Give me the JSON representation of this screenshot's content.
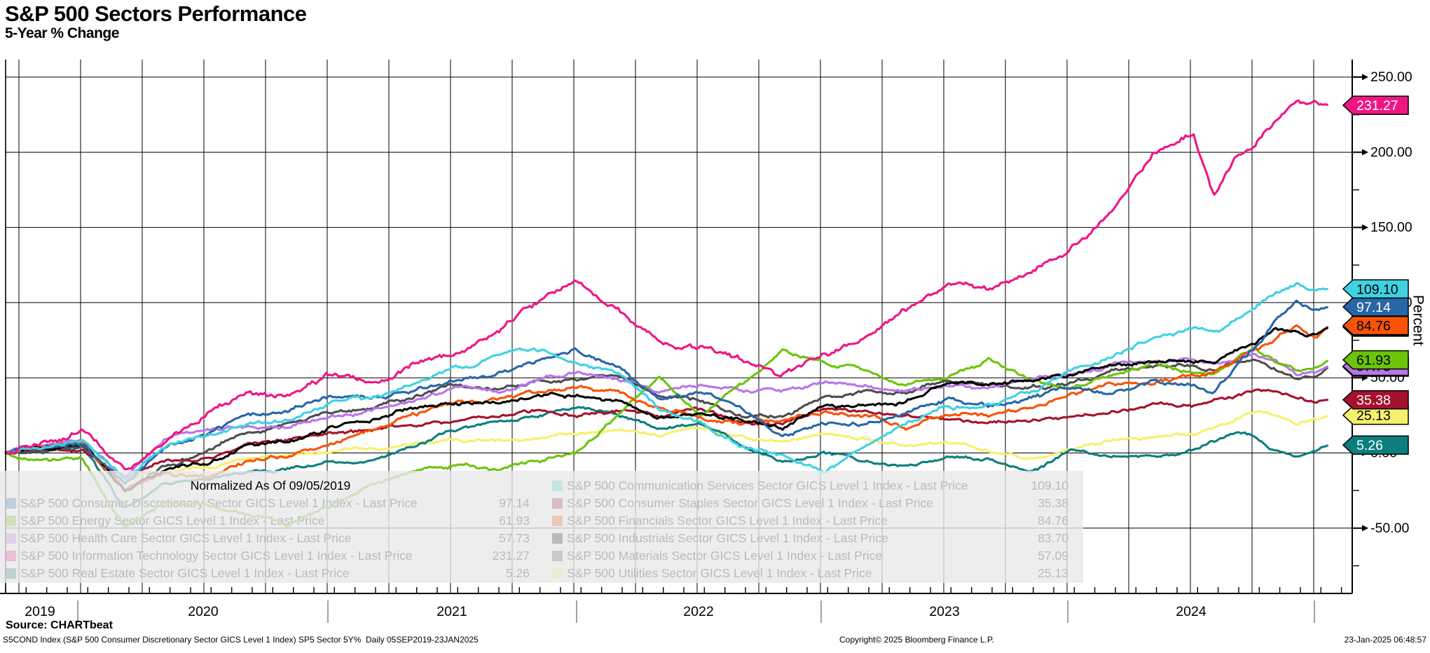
{
  "header": {
    "title": "S&P 500 Sectors Performance",
    "subtitle": "5-Year % Change"
  },
  "chart_data": {
    "type": "line",
    "title": "S&P 500 Sectors Performance",
    "subtitle": "5-Year % Change",
    "ylabel": "Percent",
    "legend_note": "Normalized As Of 09/05/2019",
    "ylim": [
      -92,
      262
    ],
    "yticks": [
      250,
      200,
      150,
      100,
      50,
      0,
      -50
    ],
    "y_minor_ticks": [
      225,
      175,
      125,
      75,
      25,
      -25,
      -75
    ],
    "grid": true,
    "legend_position": "bottom-left-panel",
    "x_tick_years": [
      "2019",
      "2020",
      "2021",
      "2022",
      "2023",
      "2024"
    ],
    "x_range_label": "05SEP2019-23JAN2025",
    "x_months_since_2019_09_05": [
      0,
      2,
      4,
      6,
      8,
      10,
      12,
      14,
      16,
      18,
      20,
      22,
      24,
      26,
      28,
      30,
      32,
      34,
      36,
      38,
      40,
      42,
      44,
      46,
      48,
      50,
      52,
      54,
      56,
      58,
      59,
      60,
      61,
      62,
      63,
      64,
      64.6
    ],
    "series": [
      {
        "id": "cons_disc",
        "legend_label": "S&P 500 Consumer Discretionary Sector GICS Level 1 Index - Last Price",
        "last_price": 97.14,
        "last_price_text": "97.14",
        "color": "#2766a8",
        "tag_text_color": "#ffffff",
        "legend_column": "left",
        "legend_row": 1,
        "values": [
          0,
          2,
          6,
          -20,
          2,
          12,
          25,
          28,
          37,
          38,
          40,
          48,
          52,
          60,
          70,
          55,
          35,
          40,
          30,
          11,
          20,
          18,
          25,
          35,
          30,
          35,
          43,
          40,
          48,
          45,
          41,
          55,
          70,
          88,
          100,
          94,
          97.14
        ]
      },
      {
        "id": "energy",
        "legend_label": "S&P 500 Energy Sector GICS Level 1 Index - Last Price",
        "last_price": 61.93,
        "last_price_text": "61.93",
        "color": "#6cc40a",
        "tag_text_color": "#000000",
        "legend_column": "left",
        "legend_row": 2,
        "values": [
          0,
          -3,
          -4,
          -50,
          -33,
          -35,
          -40,
          -48,
          -35,
          -20,
          -10,
          -8,
          -12,
          -5,
          0,
          25,
          50,
          25,
          45,
          67,
          60,
          55,
          48,
          50,
          63,
          48,
          43,
          52,
          60,
          55,
          52,
          60,
          68,
          60,
          55,
          57,
          61.93
        ]
      },
      {
        "id": "health_care",
        "legend_label": "S&P 500 Health Care Sector GICS Level 1 Index - Last Price",
        "last_price": 57.73,
        "last_price_text": "57.73",
        "color": "#b975ea",
        "tag_text_color": "#000000",
        "legend_column": "left",
        "legend_row": 3,
        "values": [
          0,
          4,
          8,
          -15,
          10,
          15,
          18,
          18,
          25,
          28,
          35,
          42,
          40,
          48,
          55,
          50,
          40,
          45,
          40,
          41,
          48,
          45,
          42,
          45,
          42,
          48,
          53,
          58,
          62,
          62,
          60,
          63,
          66,
          62,
          52,
          54,
          57.73
        ]
      },
      {
        "id": "info_tech",
        "legend_label": "S&P 500 Information Technology Sector GICS Level 1 Index - Last Price",
        "last_price": 231.27,
        "last_price_text": "231.27",
        "color": "#f01583",
        "tag_text_color": "#ffffff",
        "legend_column": "left",
        "legend_row": 4,
        "values": [
          0,
          7,
          16,
          -12,
          8,
          26,
          38,
          40,
          52,
          48,
          58,
          66,
          80,
          100,
          114,
          95,
          72,
          70,
          62,
          52,
          65,
          75,
          95,
          112,
          108,
          120,
          135,
          160,
          200,
          215,
          172,
          195,
          205,
          220,
          235,
          232,
          231.27
        ]
      },
      {
        "id": "real_estate",
        "legend_label": "S&P 500 Real Estate Sector GICS Level 1 Index - Last Price",
        "last_price": 5.26,
        "last_price_text": "5.26",
        "color": "#0d7e7e",
        "tag_text_color": "#ffffff",
        "legend_column": "left",
        "legend_row": 5,
        "values": [
          0,
          1,
          3,
          -36,
          -20,
          -18,
          -12,
          -10,
          -7,
          -5,
          5,
          15,
          20,
          25,
          30,
          25,
          15,
          18,
          5,
          -7,
          0,
          -5,
          -8,
          -3,
          -5,
          -12,
          1,
          -2,
          -3,
          2,
          8,
          12,
          10,
          2,
          -2,
          3,
          5.26
        ]
      },
      {
        "id": "comm_svcs",
        "legend_label": "S&P 500 Communication Services Sector GICS Level 1 Index - Last Price",
        "last_price": 109.1,
        "last_price_text": "109.10",
        "color": "#3fd2e2",
        "tag_text_color": "#000000",
        "legend_column": "right",
        "legend_row": 1,
        "values": [
          0,
          4,
          8,
          -18,
          5,
          12,
          20,
          22,
          32,
          35,
          45,
          55,
          62,
          68,
          60,
          55,
          30,
          20,
          5,
          -2,
          -13,
          3,
          20,
          30,
          32,
          40,
          55,
          62,
          78,
          85,
          82,
          88,
          95,
          105,
          112,
          108,
          109.1
        ]
      },
      {
        "id": "cons_staples",
        "legend_label": "S&P 500 Consumer Staples Sector GICS Level 1 Index - Last Price",
        "last_price": 35.38,
        "last_price_text": "35.38",
        "color": "#a5122e",
        "tag_text_color": "#ffffff",
        "legend_column": "right",
        "legend_row": 2,
        "values": [
          0,
          2,
          3,
          -18,
          -5,
          -2,
          5,
          8,
          12,
          15,
          18,
          22,
          25,
          28,
          26,
          28,
          25,
          28,
          22,
          20,
          28,
          28,
          25,
          22,
          20,
          22,
          24,
          28,
          32,
          31,
          34,
          38,
          42,
          40,
          36,
          33,
          35.38
        ]
      },
      {
        "id": "financials",
        "legend_label": "S&P 500 Financials Sector GICS Level 1 Index - Last Price",
        "last_price": 84.76,
        "last_price_text": "84.76",
        "color": "#f85306",
        "tag_text_color": "#000000",
        "legend_column": "right",
        "legend_row": 3,
        "values": [
          0,
          5,
          8,
          -25,
          -15,
          -16,
          -5,
          -2,
          7,
          15,
          25,
          32,
          35,
          40,
          43,
          40,
          28,
          25,
          20,
          23,
          28,
          25,
          18,
          26,
          25,
          30,
          40,
          45,
          48,
          52,
          55,
          60,
          68,
          75,
          85,
          78,
          84.76
        ]
      },
      {
        "id": "industrials",
        "legend_label": "S&P 500 Industrials Sector GICS Level 1 Index - Last Price",
        "last_price": 83.7,
        "last_price_text": "83.70",
        "color": "#000000",
        "tag_text_color": "#ffffff",
        "legend_column": "right",
        "legend_row": 4,
        "values": [
          0,
          3,
          6,
          -25,
          -11,
          -8,
          5,
          8,
          17,
          22,
          30,
          33,
          33,
          38,
          38,
          35,
          25,
          28,
          22,
          17,
          30,
          32,
          35,
          48,
          45,
          48,
          53,
          58,
          60,
          62,
          60,
          68,
          75,
          85,
          80,
          78,
          83.7
        ]
      },
      {
        "id": "materials",
        "legend_label": "S&P 500 Materials Sector GICS Level 1 Index - Last Price",
        "last_price": 57.09,
        "last_price_text": "57.09",
        "color": "#4d4d4d",
        "tag_text_color": "#ffffff",
        "legend_column": "right",
        "legend_row": 5,
        "values": [
          0,
          2,
          4,
          -26,
          -8,
          0,
          15,
          20,
          27,
          30,
          38,
          45,
          42,
          48,
          50,
          52,
          38,
          35,
          25,
          25,
          38,
          40,
          40,
          48,
          45,
          42,
          46,
          55,
          58,
          57,
          55,
          60,
          62,
          55,
          50,
          52,
          57.09
        ]
      },
      {
        "id": "utilities",
        "legend_label": "S&P 500 Utilities Sector GICS Level 1 Index - Last Price",
        "last_price": 25.13,
        "last_price_text": "25.13",
        "color": "#f7f06d",
        "tag_text_color": "#000000",
        "legend_column": "right",
        "legend_row": 6,
        "values": [
          0,
          3,
          8,
          -18,
          -12,
          -10,
          -5,
          -2,
          1,
          2,
          5,
          8,
          8,
          10,
          12,
          15,
          12,
          18,
          10,
          7,
          12,
          10,
          5,
          6,
          2,
          -4,
          2,
          8,
          9,
          12,
          18,
          22,
          28,
          26,
          20,
          22,
          25.13
        ]
      }
    ],
    "line_draw_order": [
      "utilities",
      "real_estate",
      "cons_staples",
      "materials",
      "health_care",
      "energy",
      "financials",
      "industrials",
      "cons_disc",
      "comm_svcs",
      "info_tech"
    ]
  },
  "footer": {
    "source": "Source: CHARTbeat",
    "ticker_line": "S5COND Index (S&P 500 Consumer Discretionary Sector GICS Level 1 Index) SP5 Sector 5Y%  Daily 05SEP2019-23JAN2025",
    "copyright": "Copyright© 2025 Bloomberg Finance L.P.",
    "timestamp": "23-Jan-2025 06:48:57"
  }
}
